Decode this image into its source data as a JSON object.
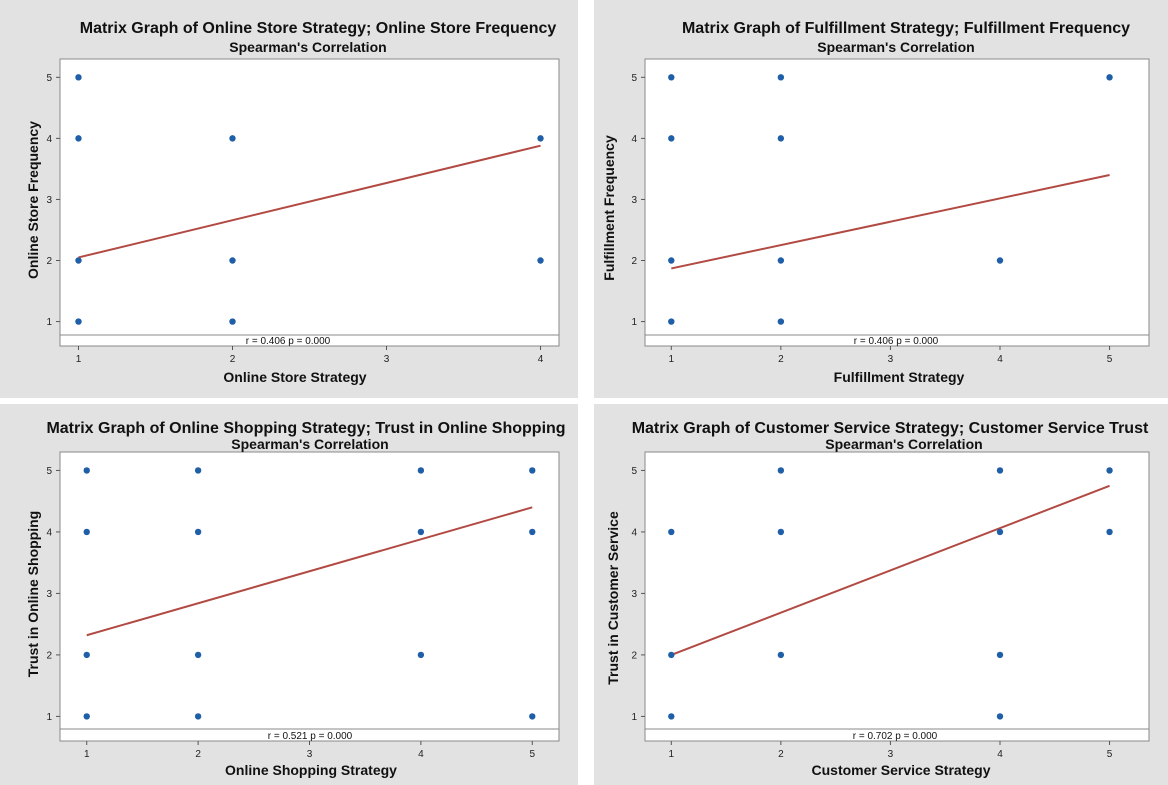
{
  "chart_data": [
    {
      "type": "scatter",
      "title": "Matrix Graph of Online Store Strategy; Online Store Frequency",
      "subtitle": "Spearman's Correlation",
      "xlabel": "Online Store Strategy",
      "ylabel": "Online Store Frequency",
      "xticks": [
        1,
        2,
        3,
        4
      ],
      "yticks": [
        1,
        2,
        3,
        4,
        5
      ],
      "xlim": [
        0.88,
        4.12
      ],
      "ylim": [
        0.6,
        5.3
      ],
      "points": [
        [
          1,
          5
        ],
        [
          1,
          4
        ],
        [
          1,
          2
        ],
        [
          1,
          1
        ],
        [
          2,
          4
        ],
        [
          2,
          2
        ],
        [
          2,
          1
        ],
        [
          4,
          4
        ],
        [
          4,
          2
        ]
      ],
      "fit_line": [
        [
          1,
          2.05
        ],
        [
          4,
          3.88
        ]
      ],
      "stat_text": "r = 0.406  p = 0.000",
      "point_color": "#1f5fa8",
      "line_color": "#b24a43"
    },
    {
      "type": "scatter",
      "title": "Matrix Graph of Fulfillment Strategy; Fulfillment Frequency",
      "subtitle": "Spearman's Correlation",
      "xlabel": "Fulfillment Strategy",
      "ylabel": "Fulfillment Frequency",
      "xticks": [
        1,
        2,
        3,
        4,
        5
      ],
      "yticks": [
        1,
        2,
        3,
        4,
        5
      ],
      "xlim": [
        0.76,
        5.36
      ],
      "ylim": [
        0.6,
        5.3
      ],
      "points": [
        [
          1,
          5
        ],
        [
          1,
          4
        ],
        [
          1,
          2
        ],
        [
          1,
          1
        ],
        [
          2,
          5
        ],
        [
          2,
          4
        ],
        [
          2,
          2
        ],
        [
          2,
          1
        ],
        [
          4,
          2
        ],
        [
          5,
          5
        ]
      ],
      "fit_line": [
        [
          1,
          1.87
        ],
        [
          5,
          3.4
        ]
      ],
      "stat_text": "r = 0.406  p = 0.000",
      "point_color": "#1f5fa8",
      "line_color": "#b24a43"
    },
    {
      "type": "scatter",
      "title": "Matrix Graph of Online Shopping Strategy; Trust in Online Shopping",
      "subtitle": "Spearman's Correlation",
      "xlabel": "Online Shopping Strategy",
      "ylabel": "Trust in Online Shopping",
      "xticks": [
        1,
        2,
        3,
        4,
        5
      ],
      "yticks": [
        1,
        2,
        3,
        4,
        5
      ],
      "xlim": [
        0.76,
        5.24
      ],
      "ylim": [
        0.6,
        5.3
      ],
      "points": [
        [
          1,
          5
        ],
        [
          1,
          4
        ],
        [
          1,
          2
        ],
        [
          1,
          1
        ],
        [
          2,
          5
        ],
        [
          2,
          4
        ],
        [
          2,
          2
        ],
        [
          2,
          1
        ],
        [
          4,
          5
        ],
        [
          4,
          4
        ],
        [
          4,
          2
        ],
        [
          5,
          5
        ],
        [
          5,
          4
        ],
        [
          5,
          1
        ]
      ],
      "fit_line": [
        [
          1,
          2.32
        ],
        [
          5,
          4.4
        ]
      ],
      "stat_text": "r = 0.521  p = 0.000",
      "point_color": "#1f5fa8",
      "line_color": "#b24a43"
    },
    {
      "type": "scatter",
      "title": "Matrix Graph of Customer Service Strategy; Customer Service Trust",
      "subtitle": "Spearman's Correlation",
      "xlabel": "Customer Service Strategy",
      "ylabel": "Trust in Customer Service",
      "xticks": [
        1,
        2,
        3,
        4,
        5
      ],
      "yticks": [
        1,
        2,
        3,
        4,
        5
      ],
      "xlim": [
        0.76,
        5.36
      ],
      "ylim": [
        0.6,
        5.3
      ],
      "points": [
        [
          1,
          4
        ],
        [
          1,
          2
        ],
        [
          1,
          1
        ],
        [
          2,
          5
        ],
        [
          2,
          4
        ],
        [
          2,
          2
        ],
        [
          4,
          5
        ],
        [
          4,
          4
        ],
        [
          4,
          2
        ],
        [
          4,
          1
        ],
        [
          5,
          5
        ],
        [
          5,
          4
        ]
      ],
      "fit_line": [
        [
          1,
          2.0
        ],
        [
          5,
          4.75
        ]
      ],
      "stat_text": "r = 0.702  p = 0.000",
      "point_color": "#1f5fa8",
      "line_color": "#b24a43"
    }
  ]
}
